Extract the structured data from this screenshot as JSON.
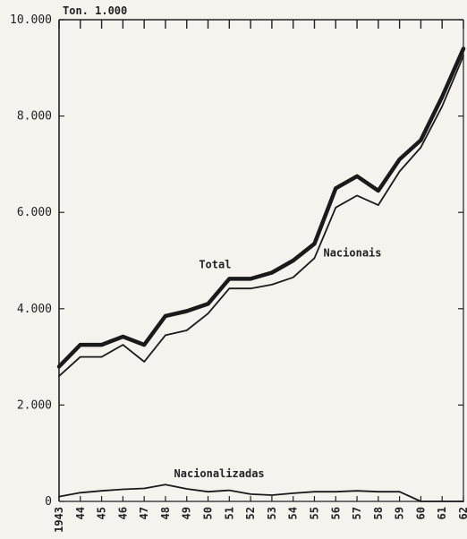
{
  "chart_data": {
    "type": "line",
    "ylabel": "Ton. 1.000",
    "ylim": [
      0,
      10000
    ],
    "y_ticks": [
      0,
      2000,
      4000,
      6000,
      8000,
      10000
    ],
    "y_tick_labels": [
      "0",
      "2.000",
      "4.000",
      "6.000",
      "8.000",
      "10.000"
    ],
    "categories": [
      "1943",
      "44",
      "45",
      "46",
      "47",
      "48",
      "49",
      "50",
      "51",
      "52",
      "53",
      "54",
      "55",
      "56",
      "57",
      "58",
      "59",
      "60",
      "61",
      "62"
    ],
    "series": [
      {
        "name": "Total",
        "color": "#1a1a1a",
        "values": [
          2800,
          3250,
          3250,
          3420,
          3250,
          3850,
          3950,
          4100,
          4620,
          4620,
          4750,
          5000,
          5350,
          6500,
          6750,
          6450,
          7100,
          7500,
          8400,
          9400
        ]
      },
      {
        "name": "Nacionais",
        "color": "#1a1a1a",
        "values": [
          2600,
          3000,
          3000,
          3250,
          2900,
          3450,
          3550,
          3900,
          4420,
          4420,
          4500,
          4650,
          5050,
          6100,
          6350,
          6150,
          6850,
          7350,
          8200,
          9250
        ]
      },
      {
        "name": "Nacionalizadas",
        "color": "#1a1a1a",
        "values": [
          100,
          180,
          220,
          250,
          270,
          350,
          260,
          200,
          230,
          150,
          130,
          170,
          200,
          200,
          220,
          200,
          200,
          0,
          0,
          0
        ]
      }
    ]
  }
}
